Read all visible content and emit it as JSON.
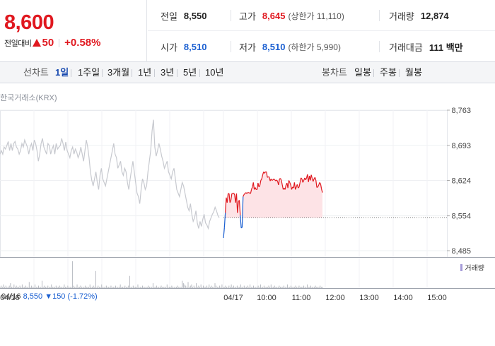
{
  "summary": {
    "current_price": "8,600",
    "change_label": "전일대비",
    "change_amount": "50",
    "change_rate": "+0.58%",
    "stats": {
      "prev_close": {
        "label": "전일",
        "value": "8,550"
      },
      "high": {
        "label": "고가",
        "value": "8,645",
        "sub": "(상한가 11,110)"
      },
      "volume": {
        "label": "거래량",
        "value": "12,874"
      },
      "open": {
        "label": "시가",
        "value": "8,510"
      },
      "low": {
        "label": "저가",
        "value": "8,510",
        "sub": "(하한가 5,990)"
      },
      "trade_value": {
        "label": "거래대금",
        "value": "111 백만"
      }
    }
  },
  "period_bar": {
    "line_chart_label": "선차트",
    "periods": [
      "1일",
      "1주일",
      "3개월",
      "1년",
      "3년",
      "5년",
      "10년"
    ],
    "active_period": "1일",
    "candle_chart_label": "봉차트",
    "candle_periods": [
      "일봉",
      "주봉",
      "월봉"
    ]
  },
  "chart": {
    "exchange_label": "한국거래소(KRX)",
    "volume_legend": "거래량",
    "prev_info": {
      "date": "04/16",
      "price": "8,550",
      "change": "▼150",
      "rate": "(-1.72%)"
    },
    "colors": {
      "prev_line": "#c7c9cf",
      "up_line": "#e0181f",
      "down_line": "#1a5fd1",
      "fill": "#fde3e6",
      "baseline": "#555555",
      "volume": "#b8bbc2"
    }
  },
  "chart_data": {
    "type": "line",
    "ylim": [
      8485,
      8763
    ],
    "yticks": [
      "8,763",
      "8,693",
      "8,624",
      "8,554",
      "8,485"
    ],
    "ytick_values": [
      8763,
      8693,
      8624,
      8554,
      8485
    ],
    "baseline": 8550,
    "xlabels": [
      "04/16",
      "04/17",
      "10:00",
      "11:00",
      "12:00",
      "13:00",
      "14:00",
      "15:00"
    ],
    "series": [
      {
        "values": [
          8676,
          8683,
          8676,
          8690,
          8686,
          8693,
          8701,
          8683,
          8697,
          8683,
          8697,
          8701,
          8690,
          8686,
          8676,
          8683,
          8697,
          8690,
          8704,
          8697,
          8690,
          8676,
          8690,
          8697,
          8683,
          8704,
          8697,
          8683,
          8662,
          8676,
          8697,
          8707,
          8690,
          8683,
          8676,
          8697,
          8693,
          8676,
          8686,
          8693,
          8676,
          8697,
          8686,
          8690,
          8693,
          8707,
          8697,
          8683,
          8700,
          8683,
          8676,
          8669,
          8683,
          8690,
          8676,
          8686,
          8680,
          8669,
          8676,
          8690,
          8676,
          8662,
          8683,
          8704,
          8690,
          8669,
          8641,
          8624,
          8613,
          8627,
          8641,
          8620,
          8606,
          8634,
          8648,
          8627,
          8620,
          8613,
          8627,
          8641,
          8655,
          8669,
          8683,
          8697,
          8676,
          8669,
          8648,
          8655,
          8662,
          8641,
          8634,
          8648,
          8641,
          8620,
          8606,
          8627,
          8645,
          8662,
          8641,
          8620,
          8599,
          8592,
          8578,
          8606,
          8627,
          8620,
          8606,
          8613,
          8641,
          8662,
          8683,
          8722,
          8744,
          8690,
          8672,
          8683,
          8697,
          8686,
          8672,
          8662,
          8648,
          8655,
          8662,
          8641,
          8634,
          8627,
          8641,
          8648,
          8627,
          8606,
          8599,
          8592,
          8606,
          8620,
          8613,
          8599,
          8585,
          8571,
          8564,
          8578,
          8557,
          8543,
          8550,
          8564,
          8540,
          8529,
          8543,
          8533,
          8547,
          8557,
          8540,
          8536,
          8529,
          8543,
          8550,
          8557,
          8562,
          8571,
          8564,
          8555,
          8550
        ]
      },
      {
        "values": [
          8510,
          8530,
          8560,
          8590,
          8580,
          8598,
          8598,
          8580,
          8585,
          8598,
          8598,
          8599,
          8595,
          8580,
          8598,
          8560,
          8582,
          8585,
          8555,
          8530,
          8531,
          8592,
          8596,
          8598,
          8600,
          8598,
          8600,
          8600,
          8599,
          8598,
          8606,
          8611,
          8620,
          8606,
          8610,
          8606,
          8606,
          8619,
          8611,
          8614,
          8624,
          8627,
          8635,
          8641,
          8638,
          8641,
          8641,
          8630,
          8631,
          8631,
          8623,
          8627,
          8624,
          8625,
          8627,
          8625,
          8623,
          8625,
          8622,
          8615,
          8627,
          8628,
          8624,
          8615,
          8606,
          8609,
          8606,
          8615,
          8619,
          8609,
          8624,
          8620,
          8615,
          8606,
          8611,
          8609,
          8620,
          8606,
          8611,
          8616,
          8609,
          8611,
          8620,
          8629,
          8627,
          8620,
          8624,
          8629,
          8625,
          8629,
          8636,
          8621,
          8633,
          8624,
          8635,
          8628,
          8622,
          8627,
          8630,
          8624,
          8610,
          8611,
          8615,
          8620,
          8617,
          8607,
          8600
        ]
      }
    ],
    "volume": [
      1,
      2,
      1,
      3,
      1,
      2,
      1,
      1,
      2,
      4,
      1,
      1,
      3,
      1,
      2,
      1,
      1,
      2,
      1,
      3,
      1,
      1,
      2,
      1,
      1,
      5,
      1,
      2,
      1,
      1,
      3,
      1,
      1,
      2,
      1,
      1,
      6,
      1,
      2,
      1,
      1,
      2,
      1,
      1,
      3,
      1,
      1,
      1,
      2,
      1,
      1,
      2,
      1,
      1,
      1,
      3,
      1,
      1,
      2,
      1,
      1,
      1,
      22,
      2,
      1,
      1,
      3,
      1,
      1,
      2,
      1,
      1,
      1,
      2,
      1,
      1,
      1,
      3,
      1,
      1,
      2,
      1,
      14,
      1,
      2,
      1,
      1,
      3,
      1,
      1,
      1,
      2,
      1,
      1,
      1,
      2,
      1,
      1,
      1,
      2,
      1,
      1,
      1,
      3,
      1,
      1,
      1,
      2,
      1,
      1,
      2,
      10,
      1,
      1,
      2,
      1,
      1,
      1,
      3,
      1,
      1,
      1,
      2,
      1,
      1,
      1,
      1,
      2,
      1,
      1,
      1,
      4,
      1,
      1,
      2,
      1,
      1,
      1,
      2,
      1,
      1,
      1,
      1,
      3,
      1,
      1,
      1,
      2,
      1,
      1,
      1,
      1,
      2,
      1,
      1,
      1,
      6,
      4,
      3,
      2,
      1,
      5,
      1,
      2,
      3,
      1,
      2,
      1,
      4,
      1,
      2,
      1,
      3,
      1,
      2,
      1,
      1,
      2,
      1,
      3,
      1,
      2,
      1,
      1,
      4,
      2,
      1,
      1,
      2,
      1,
      3,
      1,
      1,
      2,
      1,
      1,
      2,
      1,
      3,
      1,
      2,
      1,
      1,
      2,
      1,
      1,
      3,
      1,
      1,
      2,
      1,
      1,
      2,
      1,
      3,
      1,
      1,
      2,
      1,
      1,
      1,
      2,
      1,
      3,
      1,
      1,
      2,
      1,
      1,
      1,
      2,
      1,
      3,
      1,
      1,
      2,
      1,
      1,
      1,
      2,
      1,
      1,
      1,
      2,
      1,
      1,
      3,
      1,
      1,
      2,
      1,
      1,
      1,
      2,
      1,
      1,
      2,
      1,
      1,
      1,
      2,
      1,
      1,
      3,
      1,
      1,
      2,
      1,
      1,
      1,
      2,
      1,
      1,
      1,
      2,
      1,
      1
    ]
  }
}
